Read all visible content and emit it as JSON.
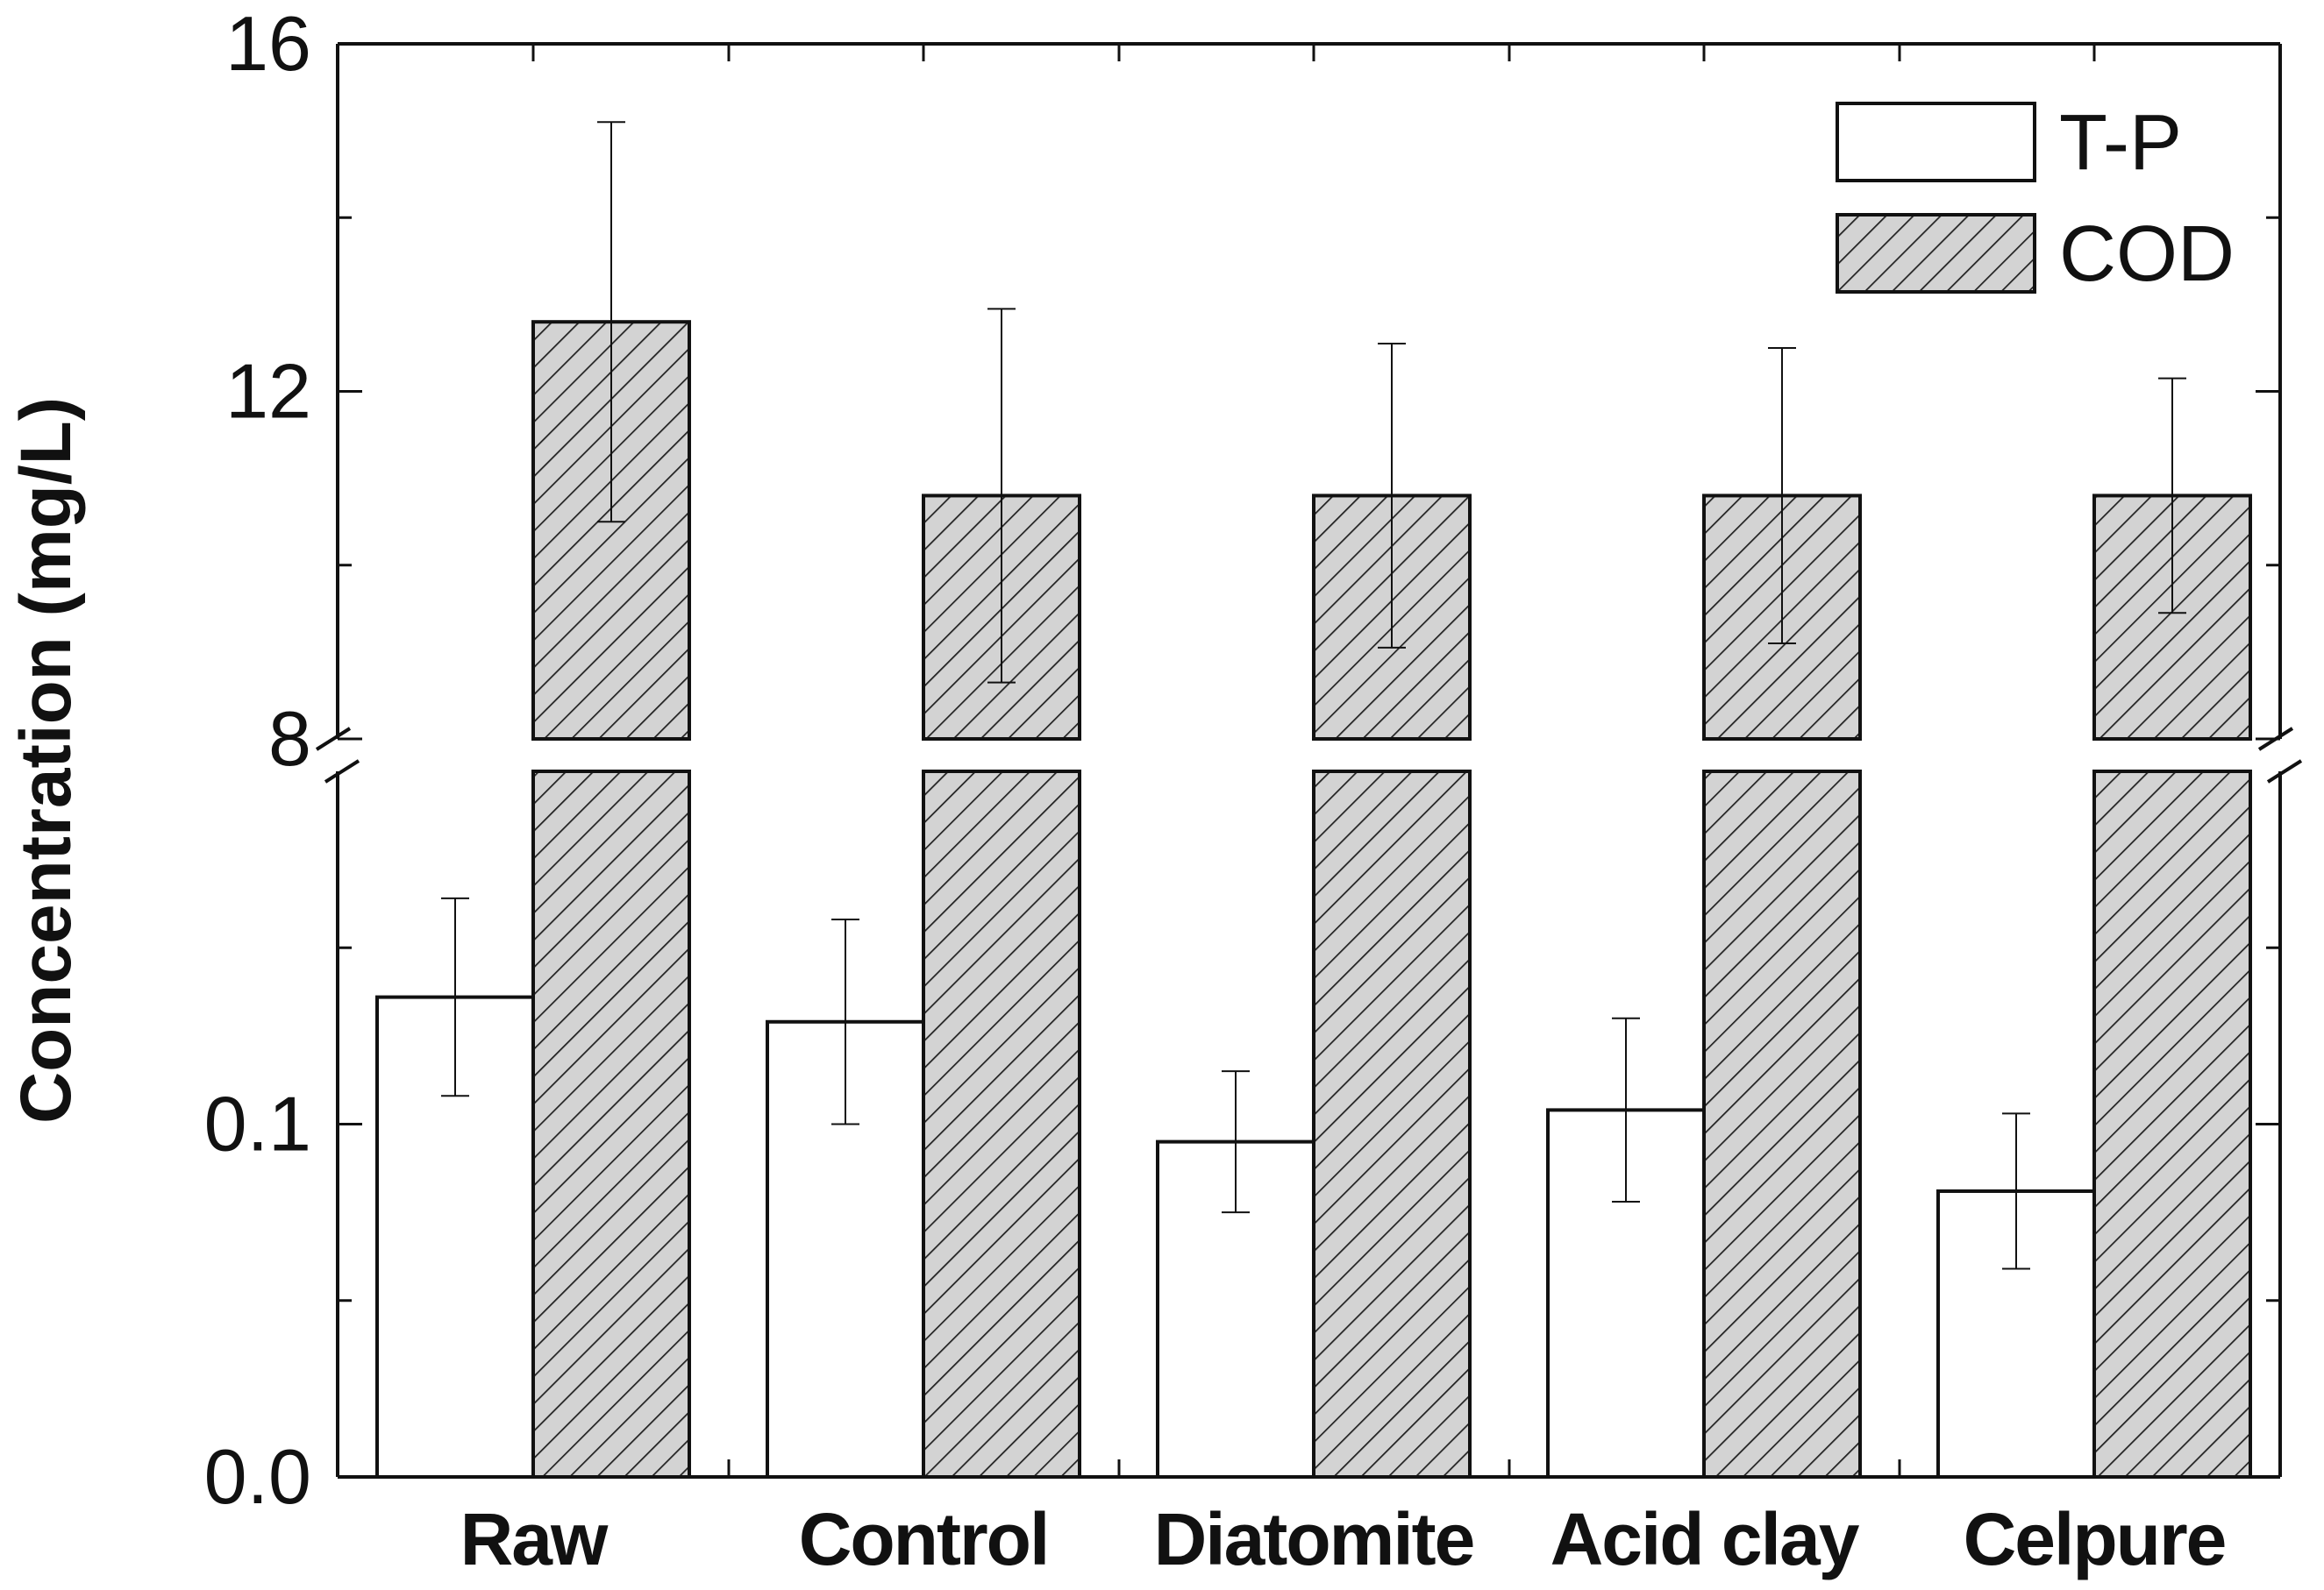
{
  "chart_data": {
    "type": "bar",
    "title": "",
    "xlabel": "",
    "ylabel": "Concentration (mg/L)",
    "categories": [
      "Raw",
      "Control",
      "Diatomite",
      "Acid clay",
      "Celpure"
    ],
    "series": [
      {
        "name": "T-P",
        "fill": "#ffffff",
        "values": [
          0.136,
          0.129,
          0.095,
          0.104,
          0.081
        ],
        "errors": [
          0.028,
          0.029,
          0.02,
          0.026,
          0.022
        ]
      },
      {
        "name": "COD",
        "fill": "#d3d3d3",
        "hatch": "diagonal",
        "values": [
          12.8,
          10.8,
          10.8,
          10.8,
          10.8
        ],
        "errors": [
          2.3,
          2.15,
          1.75,
          1.7,
          1.35
        ]
      }
    ],
    "axis_break": {
      "lower_ylim": [
        0.0,
        0.2
      ],
      "upper_ylim": [
        8,
        16
      ],
      "lower_ticks": [
        "0.0",
        "0.1"
      ],
      "upper_ticks": [
        "8",
        "12",
        "16"
      ]
    },
    "legend": {
      "position": "top-right",
      "entries": [
        "T-P",
        "COD"
      ]
    },
    "grid": false
  }
}
